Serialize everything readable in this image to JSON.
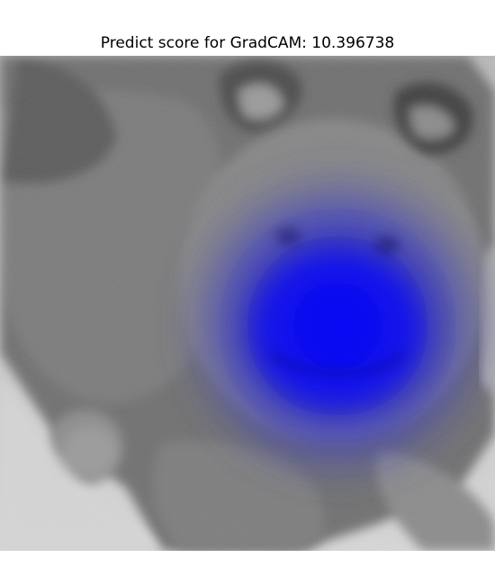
{
  "figure": {
    "title": "Predict score for GradCAM: 10.396738",
    "image_alt": "Grayscale photo of a fluffy puppy lying on a white blanket with a blue GradCAM heatmap overlay centered on the puppy's face",
    "heatmap_color": "#0000ff",
    "background_color": "#ffffff"
  }
}
